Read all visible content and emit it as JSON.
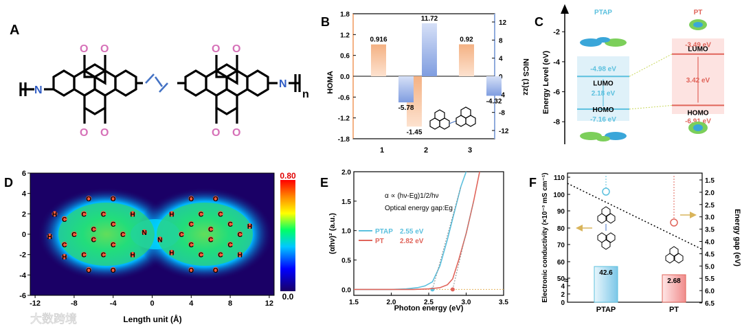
{
  "panels": {
    "A": {
      "letter": "A",
      "repeat": "n",
      "atoms": {
        "O": "O",
        "N": "N"
      }
    },
    "B": {
      "letter": "B",
      "ylabel_left": "HOMA",
      "ylabel_right": "NICS (1)zz",
      "left_ticks": [
        "1.8",
        "1.2",
        "0.6",
        "0.0",
        "-0.6",
        "-1.2",
        "-1.8"
      ],
      "right_ticks": [
        "12",
        "8",
        "4",
        "0",
        "-4",
        "-8",
        "-12"
      ],
      "x_ticks": [
        "1",
        "2",
        "3"
      ]
    },
    "C": {
      "letter": "C",
      "ylabel": "Energy Level (eV)",
      "y_ticks": [
        "-2",
        "-4",
        "-6",
        "-8"
      ],
      "col_ptap": "PTAP",
      "col_pt": "PT",
      "lumo": "LUMO",
      "homo": "HOMO",
      "ptap_lumo": "-4.98 eV",
      "ptap_gap": "2.18 eV",
      "ptap_homo": "-7.16 eV",
      "pt_lumo": "-3.49 eV",
      "pt_gap": "3.42 eV",
      "pt_homo": "-6.91 eV"
    },
    "D": {
      "letter": "D",
      "xlabel": "Length unit (Å)",
      "x_ticks": [
        "-12",
        "-8",
        "-4",
        "0",
        "4",
        "8",
        "12"
      ],
      "y_ticks": [
        "6",
        "4",
        "2",
        "0",
        "-2",
        "-4",
        "-6"
      ],
      "cbar_max": "0.80",
      "cbar_min": "0.0",
      "atoms": {
        "H": "H",
        "C": "C",
        "O": "O",
        "N": "N"
      }
    },
    "E": {
      "letter": "E",
      "xlabel": "Photon energy (eV)",
      "ylabel": "(αhν)² (a.u.)",
      "x_ticks": [
        "1.5",
        "2.0",
        "2.5",
        "3.0",
        "3.5"
      ],
      "y_ticks": [
        "2.0",
        "1.5",
        "1.0",
        "0.5",
        "0.0"
      ],
      "formula": "α ∝ (hν-Eg)1/2/hν",
      "formula_note": "Optical energy gap:Eg",
      "legend": [
        {
          "name": "PTAP",
          "value": "2.55 eV",
          "color": "#5bc0de"
        },
        {
          "name": "PT",
          "value": "2.82 eV",
          "color": "#e0645a"
        }
      ]
    },
    "F": {
      "letter": "F",
      "ylabel_left": "Electronic conductivity (×10⁻³ mS cm⁻¹)",
      "ylabel_right": "Energy gap (eV)",
      "left_ticks": [
        "110",
        "100",
        "90",
        "80",
        "70",
        "60",
        "50",
        "4",
        "2",
        "0"
      ],
      "right_ticks": [
        "1.5",
        "2.0",
        "2.5",
        "3.0",
        "3.5",
        "4.0",
        "4.5",
        "5.0",
        "5.5",
        "6.0",
        "6.5"
      ],
      "x_ticks": [
        "PTAP",
        "PT"
      ],
      "bar_labels": [
        "42.6",
        "2.68"
      ]
    }
  },
  "watermark": "大数跨境",
  "chart_data": [
    {
      "type": "bar",
      "panel": "B",
      "categories": [
        "1",
        "2",
        "3"
      ],
      "series": [
        {
          "name": "HOMA",
          "axis": "left",
          "values": [
            0.916,
            -1.45,
            0.92
          ],
          "color": "#f4b183"
        },
        {
          "name": "NICS (1)zz",
          "axis": "right",
          "values": [
            -5.78,
            11.72,
            -4.32
          ],
          "color": "#8faadc"
        }
      ],
      "ylim_left": [
        -1.8,
        1.8
      ],
      "ylim_right": [
        -14,
        14
      ]
    },
    {
      "type": "bar",
      "panel": "C",
      "categories": [
        "PTAP",
        "PT"
      ],
      "ylabel": "Energy Level (eV)",
      "lumo": [
        -4.98,
        -3.49
      ],
      "homo": [
        -7.16,
        -6.91
      ],
      "gap": [
        2.18,
        3.42
      ],
      "ylim": [
        -9.5,
        -0.8
      ]
    },
    {
      "type": "heatmap",
      "panel": "D",
      "xlabel": "Length unit (Å)",
      "xlim": [
        -12.5,
        12.5
      ],
      "ylim": [
        -6,
        6
      ],
      "color_range": [
        0.0,
        0.8
      ]
    },
    {
      "type": "line",
      "panel": "E",
      "xlabel": "Photon energy (eV)",
      "ylabel": "(αhν)² (a.u.)",
      "xlim": [
        1.5,
        3.5
      ],
      "ylim": [
        -0.1,
        2.0
      ],
      "series": [
        {
          "name": "PTAP",
          "x": [
            1.5,
            2.0,
            2.2,
            2.35,
            2.45,
            2.55,
            2.65,
            2.75,
            2.85,
            2.93,
            3.0
          ],
          "y": [
            0,
            0,
            0.01,
            0.03,
            0.06,
            0.13,
            0.4,
            0.85,
            1.35,
            1.75,
            2.0
          ],
          "eg": 2.55,
          "color": "#5bc0de"
        },
        {
          "name": "PT",
          "x": [
            1.5,
            2.0,
            2.3,
            2.5,
            2.65,
            2.75,
            2.82,
            2.9,
            3.0,
            3.1,
            3.18
          ],
          "y": [
            0,
            0,
            0,
            0.01,
            0.03,
            0.08,
            0.18,
            0.5,
            0.95,
            1.5,
            2.0
          ],
          "eg": 2.82,
          "color": "#e0645a"
        }
      ]
    },
    {
      "type": "bar",
      "panel": "F",
      "categories": [
        "PTAP",
        "PT"
      ],
      "values": [
        42.6,
        2.68
      ],
      "energy_gap": [
        2.55,
        2.82
      ],
      "right_ylim": [
        1.5,
        6.5
      ]
    }
  ]
}
